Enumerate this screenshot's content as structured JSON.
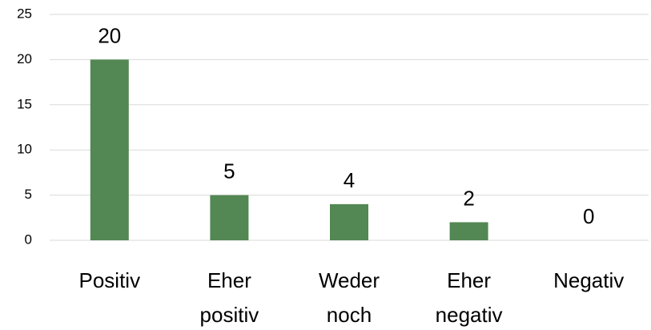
{
  "chart_data": {
    "type": "bar",
    "categories": [
      "Positiv",
      "Eher positiv",
      "Weder noch",
      "Eher negativ",
      "Negativ"
    ],
    "values": [
      20,
      5,
      4,
      2,
      0
    ],
    "color": "#538753",
    "ylim": [
      0,
      25
    ],
    "yticks": [
      0,
      5,
      10,
      15,
      20,
      25
    ],
    "grid": true
  }
}
